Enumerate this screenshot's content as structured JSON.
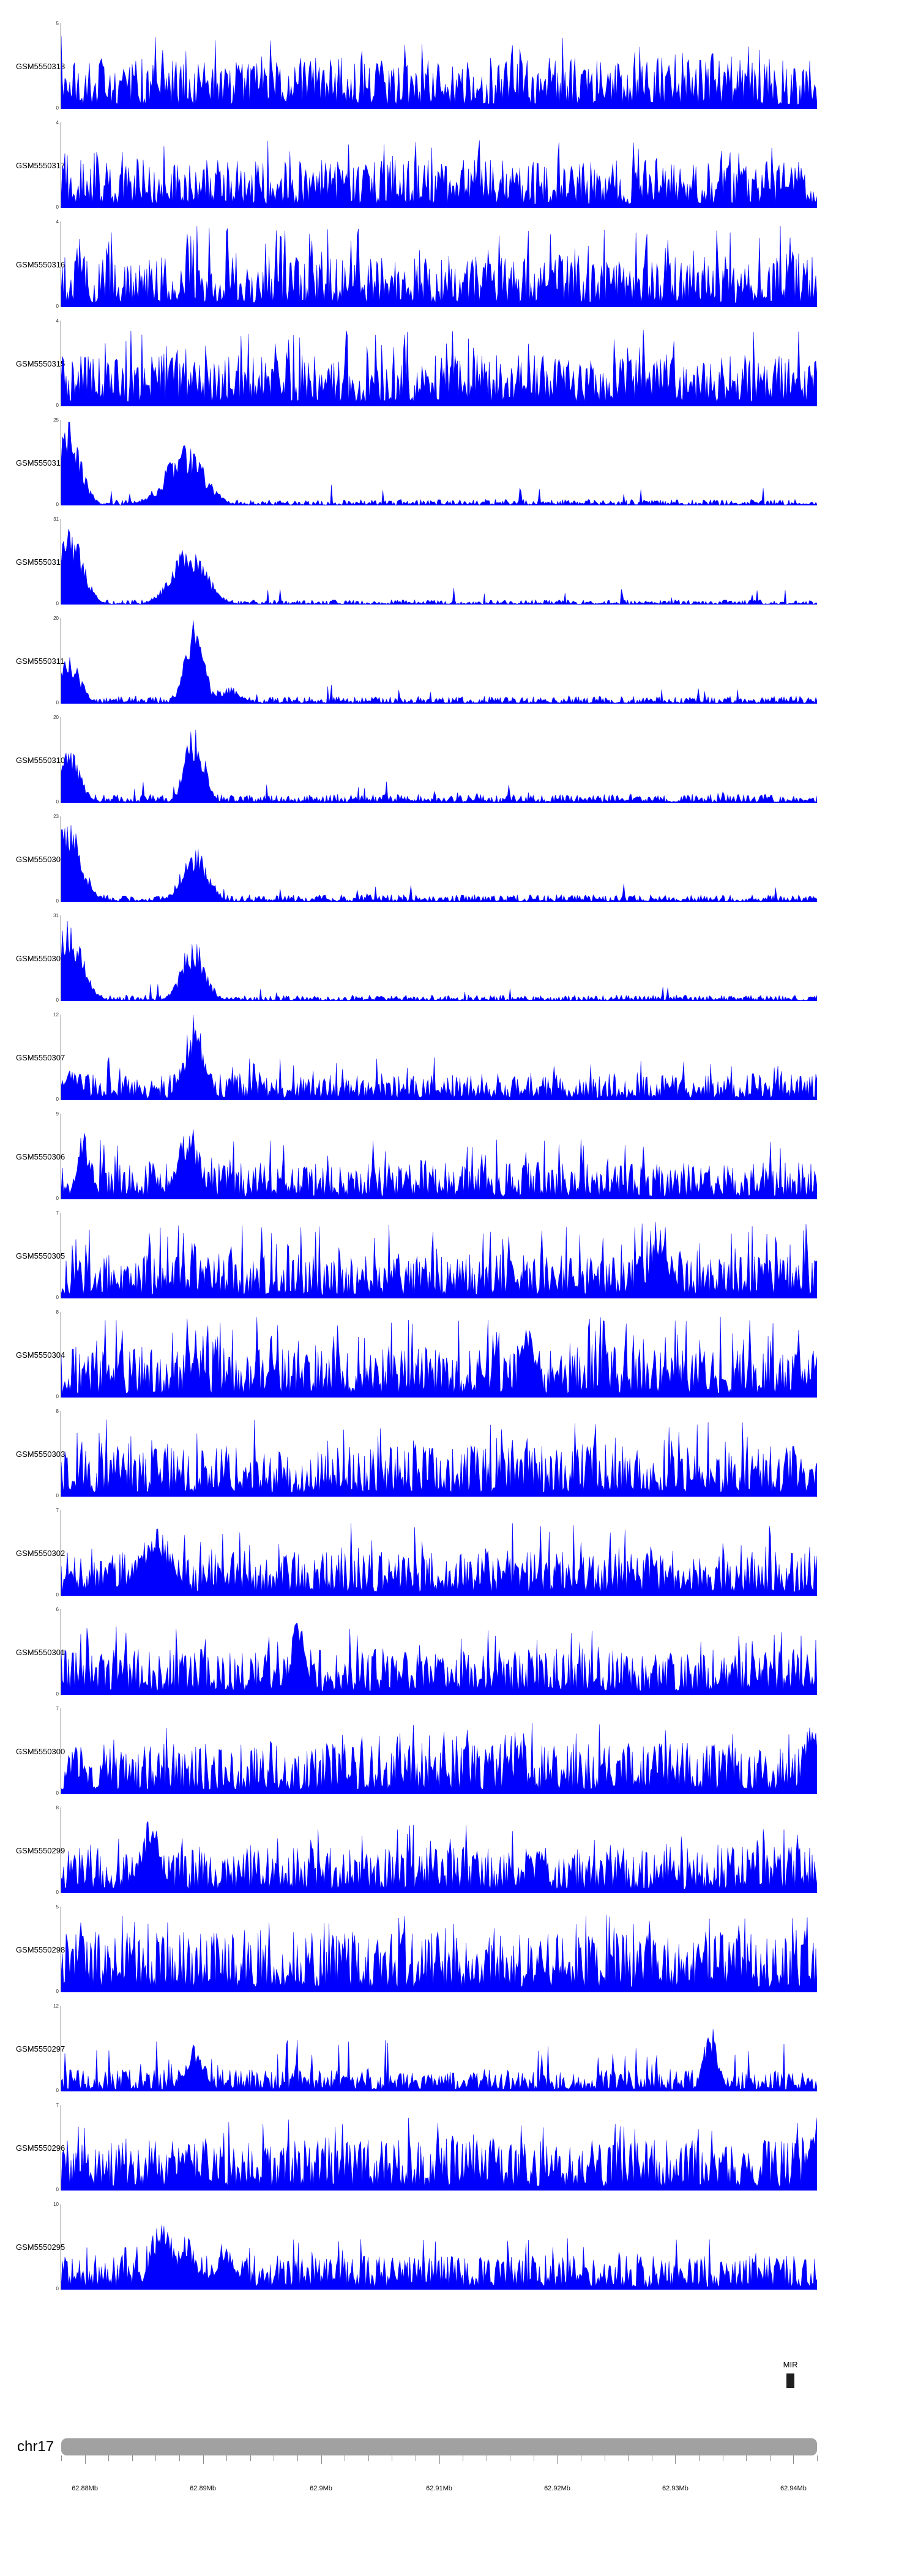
{
  "chart_data": {
    "type": "area",
    "subtype": "genome-coverage-tracks",
    "chromosome": "chr17",
    "x_unit": "Mb",
    "x_range_mb": [
      62.878,
      62.942
    ],
    "minor_tick_interval_mb": 0.002,
    "x_ticks": [
      {
        "pos_mb": 62.88,
        "label": "62.88Mb"
      },
      {
        "pos_mb": 62.89,
        "label": "62.89Mb"
      },
      {
        "pos_mb": 62.9,
        "label": "62.9Mb"
      },
      {
        "pos_mb": 62.91,
        "label": "62.91Mb"
      },
      {
        "pos_mb": 62.92,
        "label": "62.92Mb"
      },
      {
        "pos_mb": 62.93,
        "label": "62.93Mb"
      },
      {
        "pos_mb": 62.94,
        "label": "62.94Mb"
      }
    ],
    "colors": {
      "signal": "#0000ff",
      "axis_bar": "#a1a1a1",
      "tick": "#8c8c8c",
      "y_axis": "#666666",
      "annotation": "#1f1f1f"
    },
    "tracks": [
      {
        "label": "GSM5550318",
        "ymax": 5,
        "ymin": 0,
        "seed": 101,
        "baseline": 0.42,
        "spike_prob": 0.1,
        "spike_height": 0.85,
        "peaks": []
      },
      {
        "label": "GSM5550317",
        "ymax": 4,
        "ymin": 0,
        "seed": 102,
        "baseline": 0.4,
        "spike_prob": 0.08,
        "spike_height": 0.8,
        "peaks": []
      },
      {
        "label": "GSM5550316",
        "ymax": 4,
        "ymin": 0,
        "seed": 103,
        "baseline": 0.42,
        "spike_prob": 0.12,
        "spike_height": 0.95,
        "peaks": []
      },
      {
        "label": "GSM5550315",
        "ymax": 4,
        "ymin": 0,
        "seed": 104,
        "baseline": 0.42,
        "spike_prob": 0.1,
        "spike_height": 0.9,
        "peaks": []
      },
      {
        "label": "GSM5550314",
        "ymax": 25,
        "ymin": 0,
        "seed": 105,
        "baseline": 0.05,
        "spike_prob": 0.02,
        "spike_height": 0.25,
        "peaks": [
          {
            "center_mb": 62.8787,
            "h": 1.0,
            "width_mb": 0.001
          },
          {
            "center_mb": 62.8885,
            "h": 0.72,
            "width_mb": 0.0016
          },
          {
            "center_mb": 62.8862,
            "h": 0.2,
            "width_mb": 0.001
          }
        ]
      },
      {
        "label": "GSM5550313",
        "ymax": 31,
        "ymin": 0,
        "seed": 106,
        "baseline": 0.04,
        "spike_prob": 0.02,
        "spike_height": 0.2,
        "peaks": [
          {
            "center_mb": 62.8787,
            "h": 1.0,
            "width_mb": 0.0011
          },
          {
            "center_mb": 62.8888,
            "h": 0.68,
            "width_mb": 0.0015
          }
        ]
      },
      {
        "label": "GSM5550311",
        "ymax": 20,
        "ymin": 0,
        "seed": 107,
        "baseline": 0.06,
        "spike_prob": 0.03,
        "spike_height": 0.22,
        "peaks": [
          {
            "center_mb": 62.8787,
            "h": 0.6,
            "width_mb": 0.0009
          },
          {
            "center_mb": 62.8893,
            "h": 1.0,
            "width_mb": 0.0008
          },
          {
            "center_mb": 62.8922,
            "h": 0.2,
            "width_mb": 0.001
          }
        ]
      },
      {
        "label": "GSM5550310",
        "ymax": 20,
        "ymin": 0,
        "seed": 108,
        "baseline": 0.07,
        "spike_prob": 0.03,
        "spike_height": 0.25,
        "peaks": [
          {
            "center_mb": 62.8787,
            "h": 0.62,
            "width_mb": 0.0009
          },
          {
            "center_mb": 62.8893,
            "h": 0.95,
            "width_mb": 0.0008
          }
        ]
      },
      {
        "label": "GSM5550309",
        "ymax": 23,
        "ymin": 0,
        "seed": 109,
        "baseline": 0.06,
        "spike_prob": 0.03,
        "spike_height": 0.22,
        "peaks": [
          {
            "center_mb": 62.8784,
            "h": 1.0,
            "width_mb": 0.0013
          },
          {
            "center_mb": 62.8893,
            "h": 0.66,
            "width_mb": 0.0011
          }
        ]
      },
      {
        "label": "GSM5550308",
        "ymax": 31,
        "ymin": 0,
        "seed": 110,
        "baseline": 0.05,
        "spike_prob": 0.02,
        "spike_height": 0.2,
        "peaks": [
          {
            "center_mb": 62.8785,
            "h": 1.0,
            "width_mb": 0.0012
          },
          {
            "center_mb": 62.8892,
            "h": 0.74,
            "width_mb": 0.001
          }
        ]
      },
      {
        "label": "GSM5550307",
        "ymax": 12,
        "ymin": 0,
        "seed": 111,
        "baseline": 0.22,
        "spike_prob": 0.06,
        "spike_height": 0.5,
        "peaks": [
          {
            "center_mb": 62.8893,
            "h": 1.0,
            "width_mb": 0.0009
          },
          {
            "center_mb": 62.8787,
            "h": 0.35,
            "width_mb": 0.001
          }
        ]
      },
      {
        "label": "GSM5550306",
        "ymax": 9,
        "ymin": 0,
        "seed": 112,
        "baseline": 0.3,
        "spike_prob": 0.08,
        "spike_height": 0.7,
        "peaks": [
          {
            "center_mb": 62.8888,
            "h": 0.92,
            "width_mb": 0.0009
          },
          {
            "center_mb": 62.88,
            "h": 0.85,
            "width_mb": 0.0006
          }
        ]
      },
      {
        "label": "GSM5550305",
        "ymax": 7,
        "ymin": 0,
        "seed": 113,
        "baseline": 0.36,
        "spike_prob": 0.12,
        "spike_height": 0.9,
        "peaks": [
          {
            "center_mb": 62.9285,
            "h": 0.9,
            "width_mb": 0.0007
          }
        ]
      },
      {
        "label": "GSM5550304",
        "ymax": 8,
        "ymin": 0,
        "seed": 114,
        "baseline": 0.4,
        "spike_prob": 0.14,
        "spike_height": 0.95,
        "peaks": [
          {
            "center_mb": 62.9175,
            "h": 0.95,
            "width_mb": 0.0006
          }
        ]
      },
      {
        "label": "GSM5550303",
        "ymax": 8,
        "ymin": 0,
        "seed": 115,
        "baseline": 0.42,
        "spike_prob": 0.12,
        "spike_height": 0.9,
        "peaks": []
      },
      {
        "label": "GSM5550302",
        "ymax": 7,
        "ymin": 0,
        "seed": 116,
        "baseline": 0.36,
        "spike_prob": 0.1,
        "spike_height": 0.85,
        "peaks": [
          {
            "center_mb": 62.886,
            "h": 0.8,
            "width_mb": 0.0015
          }
        ]
      },
      {
        "label": "GSM5550301",
        "ymax": 6,
        "ymin": 0,
        "seed": 117,
        "baseline": 0.38,
        "spike_prob": 0.1,
        "spike_height": 0.8,
        "peaks": [
          {
            "center_mb": 62.898,
            "h": 0.95,
            "width_mb": 0.0006
          }
        ]
      },
      {
        "label": "GSM5550300",
        "ymax": 7,
        "ymin": 0,
        "seed": 118,
        "baseline": 0.42,
        "spike_prob": 0.1,
        "spike_height": 0.85,
        "peaks": [
          {
            "center_mb": 62.9415,
            "h": 1.0,
            "width_mb": 0.0006
          }
        ]
      },
      {
        "label": "GSM5550299",
        "ymax": 8,
        "ymin": 0,
        "seed": 119,
        "baseline": 0.38,
        "spike_prob": 0.1,
        "spike_height": 0.8,
        "peaks": [
          {
            "center_mb": 62.8855,
            "h": 0.9,
            "width_mb": 0.0009
          }
        ]
      },
      {
        "label": "GSM5550298",
        "ymax": 5,
        "ymin": 0,
        "seed": 120,
        "baseline": 0.5,
        "spike_prob": 0.12,
        "spike_height": 0.9,
        "peaks": []
      },
      {
        "label": "GSM5550297",
        "ymax": 12,
        "ymin": 0,
        "seed": 121,
        "baseline": 0.18,
        "spike_prob": 0.07,
        "spike_height": 0.6,
        "peaks": [
          {
            "center_mb": 62.8893,
            "h": 0.6,
            "width_mb": 0.0008
          },
          {
            "center_mb": 62.933,
            "h": 0.85,
            "width_mb": 0.0006
          }
        ]
      },
      {
        "label": "GSM5550296",
        "ymax": 7,
        "ymin": 0,
        "seed": 122,
        "baseline": 0.42,
        "spike_prob": 0.1,
        "spike_height": 0.85,
        "peaks": [
          {
            "center_mb": 62.9418,
            "h": 1.0,
            "width_mb": 0.0005
          }
        ]
      },
      {
        "label": "GSM5550295",
        "ymax": 10,
        "ymin": 0,
        "seed": 123,
        "baseline": 0.28,
        "spike_prob": 0.08,
        "spike_height": 0.6,
        "peaks": [
          {
            "center_mb": 62.8865,
            "h": 0.95,
            "width_mb": 0.0009
          },
          {
            "center_mb": 62.8885,
            "h": 0.75,
            "width_mb": 0.0008
          },
          {
            "center_mb": 62.892,
            "h": 0.5,
            "width_mb": 0.001
          }
        ]
      }
    ],
    "annotation": {
      "features": [
        {
          "label": "MIR",
          "start_mb": 62.9394,
          "end_mb": 62.9401
        }
      ]
    }
  }
}
